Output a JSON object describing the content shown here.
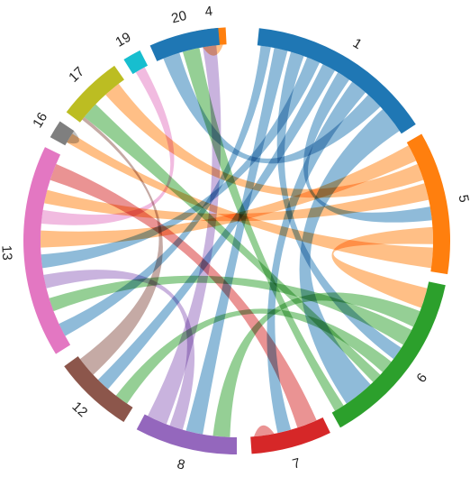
{
  "chart_data": {
    "type": "chord",
    "groups": [
      {
        "label": "1",
        "color": "#1f77b4"
      },
      {
        "label": "4",
        "color": "#ff7f0e"
      },
      {
        "label": "5",
        "color": "#ff7f0e"
      },
      {
        "label": "6",
        "color": "#2ca02c"
      },
      {
        "label": "7",
        "color": "#d62728"
      },
      {
        "label": "8",
        "color": "#9467bd"
      },
      {
        "label": "12",
        "color": "#8c564b"
      },
      {
        "label": "13",
        "color": "#e377c2"
      },
      {
        "label": "16",
        "color": "#7f7f7f"
      },
      {
        "label": "17",
        "color": "#bcbd22"
      },
      {
        "label": "19",
        "color": "#17becf"
      },
      {
        "label": "20",
        "color": "#1f77b4"
      }
    ],
    "arcs": [
      {
        "group": "1",
        "start": 6,
        "end": 57
      },
      {
        "group": "4",
        "start": 349,
        "end": 357
      },
      {
        "group": "5",
        "start": 60,
        "end": 99
      },
      {
        "group": "6",
        "start": 102,
        "end": 151
      },
      {
        "group": "7",
        "start": 154,
        "end": 176
      },
      {
        "group": "8",
        "start": 180,
        "end": 208
      },
      {
        "group": "12",
        "start": 212,
        "end": 234
      },
      {
        "group": "13",
        "start": 238,
        "end": 296
      },
      {
        "group": "16",
        "start": 299,
        "end": 304
      },
      {
        "group": "17",
        "start": 307,
        "end": 325
      },
      {
        "group": "19",
        "start": 328,
        "end": 333
      },
      {
        "group": "20",
        "start": 336,
        "end": 355
      }
    ],
    "chords": [
      {
        "from": "1",
        "a": [
          7,
          10
        ],
        "to": "13",
        "b": [
          241,
          245
        ]
      },
      {
        "from": "1",
        "a": [
          11,
          15
        ],
        "to": "8",
        "b": [
          190,
          195
        ]
      },
      {
        "from": "1",
        "a": [
          16,
          20
        ],
        "to": "6",
        "b": [
          123,
          127
        ]
      },
      {
        "from": "1",
        "a": [
          21,
          25
        ],
        "to": "13",
        "b": [
          262,
          266
        ]
      },
      {
        "from": "1",
        "a": [
          26,
          30
        ],
        "to": "12",
        "b": [
          221,
          225
        ]
      },
      {
        "from": "1",
        "a": [
          31,
          35
        ],
        "to": "5",
        "b": [
          80,
          84
        ]
      },
      {
        "from": "1",
        "a": [
          36,
          41
        ],
        "to": "7",
        "b": [
          164,
          168
        ]
      },
      {
        "from": "1",
        "a": [
          42,
          47
        ],
        "to": "20",
        "b": [
          338,
          343
        ]
      },
      {
        "from": "1",
        "a": [
          48,
          56
        ],
        "to": "6",
        "b": [
          137,
          146
        ]
      },
      {
        "from": "4",
        "a": [
          350,
          356
        ],
        "to": "4",
        "b": [
          350,
          356
        ]
      },
      {
        "from": "5",
        "a": [
          61,
          66
        ],
        "to": "13",
        "b": [
          268,
          273
        ]
      },
      {
        "from": "5",
        "a": [
          67,
          72
        ],
        "to": "17",
        "b": [
          318,
          323
        ]
      },
      {
        "from": "5",
        "a": [
          73,
          78
        ],
        "to": "13",
        "b": [
          281,
          285
        ]
      },
      {
        "from": "5",
        "a": [
          86,
          91
        ],
        "to": "6",
        "b": [
          104,
          110
        ]
      },
      {
        "from": "5",
        "a": [
          92,
          98
        ],
        "to": "16",
        "b": [
          300,
          303
        ]
      },
      {
        "from": "6",
        "a": [
          111,
          116
        ],
        "to": "8",
        "b": [
          182,
          187
        ]
      },
      {
        "from": "6",
        "a": [
          117,
          122
        ],
        "to": "13",
        "b": [
          249,
          253
        ]
      },
      {
        "from": "6",
        "a": [
          128,
          132
        ],
        "to": "12",
        "b": [
          214,
          218
        ]
      },
      {
        "from": "6",
        "a": [
          133,
          136
        ],
        "to": "17",
        "b": [
          309,
          314
        ]
      },
      {
        "from": "6",
        "a": [
          147,
          150
        ],
        "to": "20",
        "b": [
          344,
          349
        ]
      },
      {
        "from": "7",
        "a": [
          156,
          162
        ],
        "to": "13",
        "b": [
          288,
          293
        ]
      },
      {
        "from": "7",
        "a": [
          169,
          175
        ],
        "to": "7",
        "b": [
          169,
          175
        ]
      },
      {
        "from": "8",
        "a": [
          196,
          200
        ],
        "to": "13",
        "b": [
          256,
          260
        ]
      },
      {
        "from": "8",
        "a": [
          201,
          207
        ],
        "to": "20",
        "b": [
          350,
          354
        ]
      },
      {
        "from": "12",
        "a": [
          227,
          233
        ],
        "to": "17",
        "b": [
          308,
          309
        ]
      },
      {
        "from": "13",
        "a": [
          275,
          279
        ],
        "to": "19",
        "b": [
          329,
          332
        ]
      },
      {
        "from": "16",
        "a": [
          300,
          304
        ],
        "to": "16",
        "b": [
          300,
          304
        ]
      }
    ]
  }
}
